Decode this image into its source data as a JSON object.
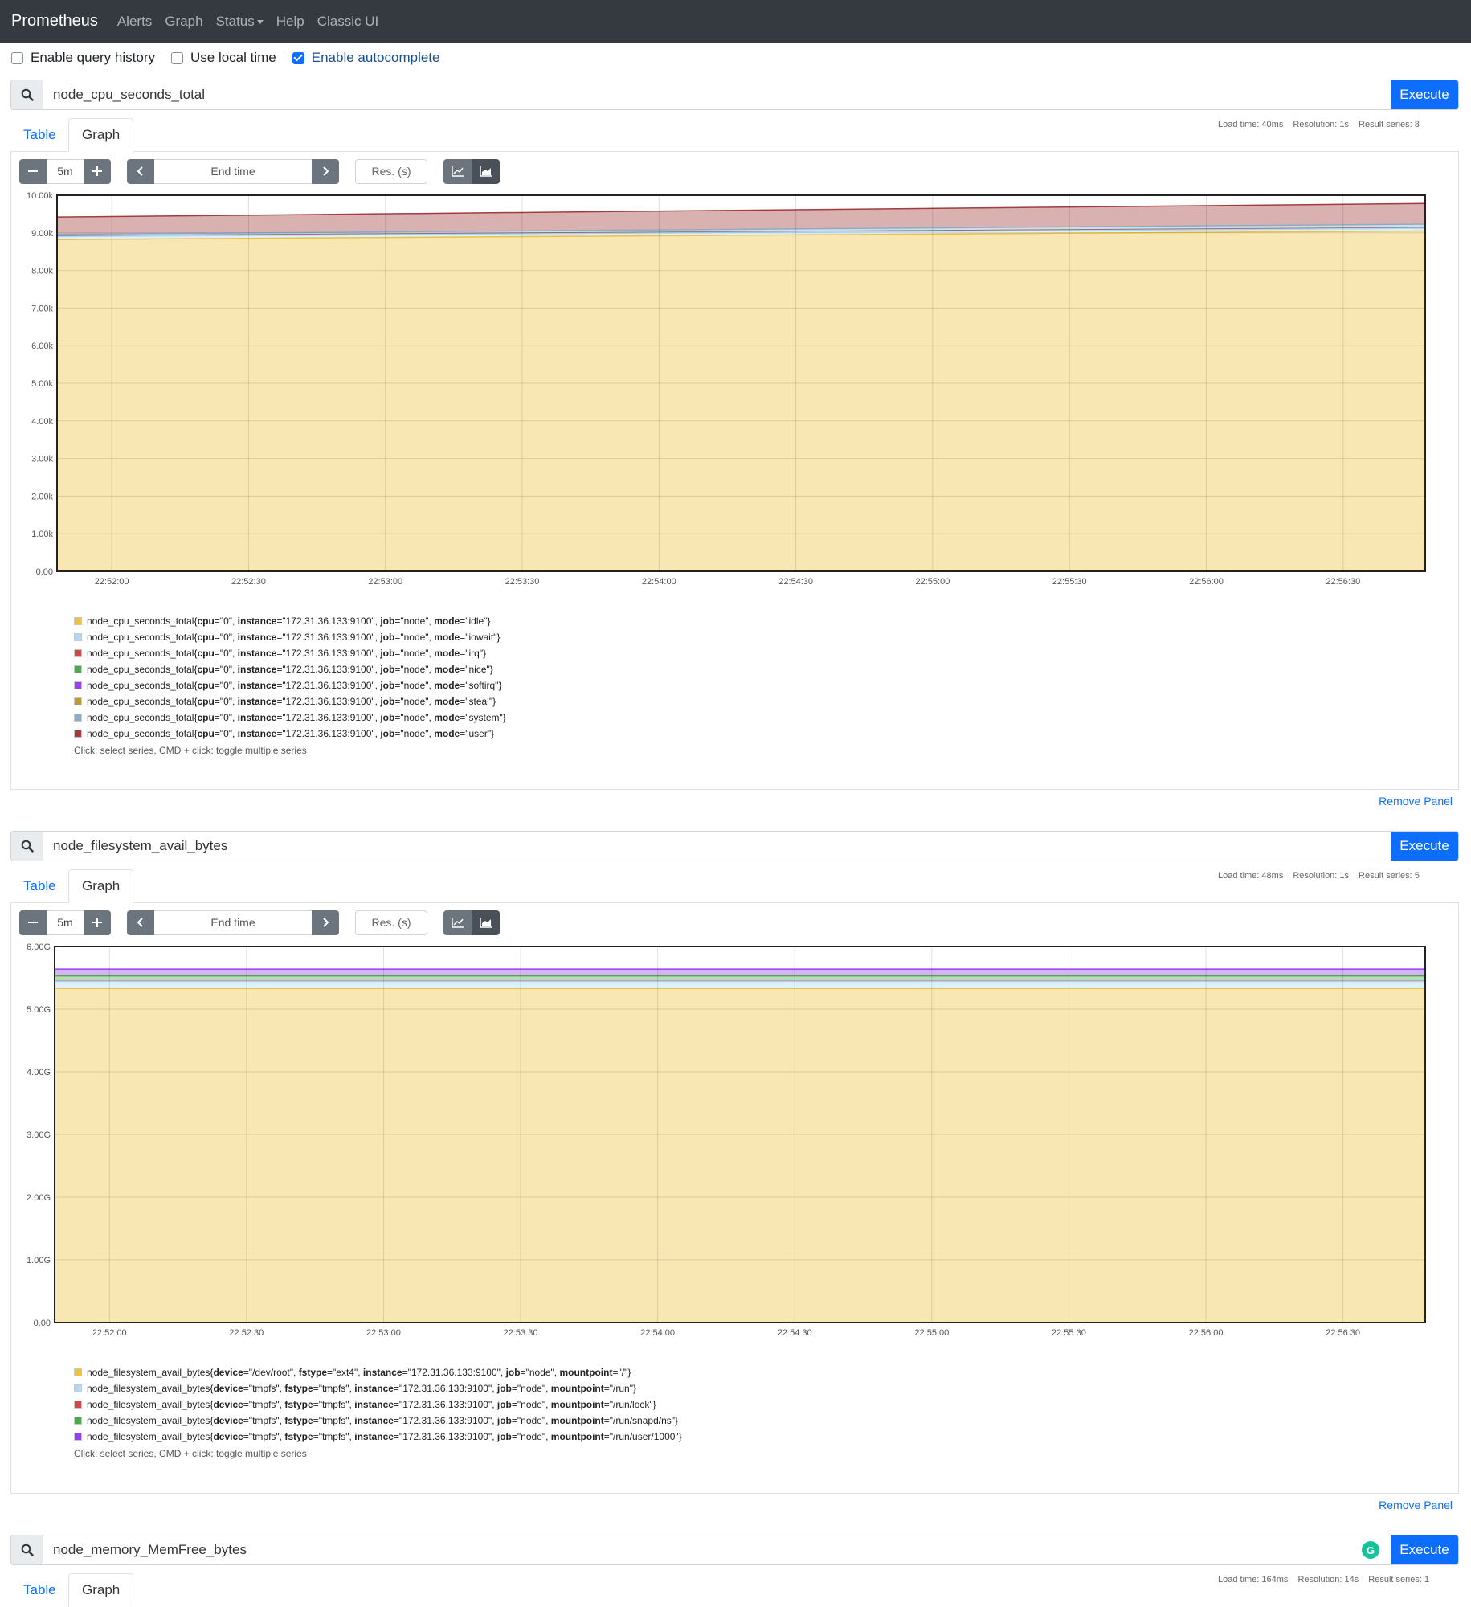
{
  "navbar": {
    "brand": "Prometheus",
    "links": [
      "Alerts",
      "Graph",
      "Status",
      "Help",
      "Classic UI"
    ]
  },
  "options": [
    {
      "label": "Enable query history",
      "checked": false
    },
    {
      "label": "Use local time",
      "checked": false
    },
    {
      "label": "Enable autocomplete",
      "checked": true
    }
  ],
  "common": {
    "execute": "Execute",
    "tab_table": "Table",
    "tab_graph": "Graph",
    "range": "5m",
    "end_time": "End time",
    "res_placeholder": "Res. (s)",
    "remove_panel": "Remove Panel",
    "legend_hint": "Click: select series, CMD + click: toggle multiple series"
  },
  "panels": [
    {
      "query": "node_cpu_seconds_total",
      "stats": {
        "load": "Load time: 40ms",
        "resolution": "Resolution: 1s",
        "series": "Result series: 8"
      },
      "legend": [
        {
          "name": "node_cpu_seconds_total",
          "color": "#edc240",
          "labels": [
            [
              "cpu",
              "\"0\""
            ],
            [
              "instance",
              "\"172.31.36.133:9100\""
            ],
            [
              "job",
              "\"node\""
            ],
            [
              "mode",
              "\"idle\""
            ]
          ]
        },
        {
          "name": "node_cpu_seconds_total",
          "color": "#afd8f8",
          "labels": [
            [
              "cpu",
              "\"0\""
            ],
            [
              "instance",
              "\"172.31.36.133:9100\""
            ],
            [
              "job",
              "\"node\""
            ],
            [
              "mode",
              "\"iowait\""
            ]
          ]
        },
        {
          "name": "node_cpu_seconds_total",
          "color": "#cb4b4b",
          "labels": [
            [
              "cpu",
              "\"0\""
            ],
            [
              "instance",
              "\"172.31.36.133:9100\""
            ],
            [
              "job",
              "\"node\""
            ],
            [
              "mode",
              "\"irq\""
            ]
          ]
        },
        {
          "name": "node_cpu_seconds_total",
          "color": "#4da74d",
          "labels": [
            [
              "cpu",
              "\"0\""
            ],
            [
              "instance",
              "\"172.31.36.133:9100\""
            ],
            [
              "job",
              "\"node\""
            ],
            [
              "mode",
              "\"nice\""
            ]
          ]
        },
        {
          "name": "node_cpu_seconds_total",
          "color": "#9440ed",
          "labels": [
            [
              "cpu",
              "\"0\""
            ],
            [
              "instance",
              "\"172.31.36.133:9100\""
            ],
            [
              "job",
              "\"node\""
            ],
            [
              "mode",
              "\"softirq\""
            ]
          ]
        },
        {
          "name": "node_cpu_seconds_total",
          "color": "#bd9b33",
          "labels": [
            [
              "cpu",
              "\"0\""
            ],
            [
              "instance",
              "\"172.31.36.133:9100\""
            ],
            [
              "job",
              "\"node\""
            ],
            [
              "mode",
              "\"steal\""
            ]
          ]
        },
        {
          "name": "node_cpu_seconds_total",
          "color": "#8cacc6",
          "labels": [
            [
              "cpu",
              "\"0\""
            ],
            [
              "instance",
              "\"172.31.36.133:9100\""
            ],
            [
              "job",
              "\"node\""
            ],
            [
              "mode",
              "\"system\""
            ]
          ]
        },
        {
          "name": "node_cpu_seconds_total",
          "color": "#a23c3c",
          "labels": [
            [
              "cpu",
              "\"0\""
            ],
            [
              "instance",
              "\"172.31.36.133:9100\""
            ],
            [
              "job",
              "\"node\""
            ],
            [
              "mode",
              "\"user\""
            ]
          ]
        }
      ],
      "chart_data": {
        "type": "area",
        "stacked": true,
        "x_ticks": [
          "22:52:00",
          "22:52:30",
          "22:53:00",
          "22:53:30",
          "22:54:00",
          "22:54:30",
          "22:55:00",
          "22:55:30",
          "22:56:00",
          "22:56:30"
        ],
        "y_ticks": [
          "0.00",
          "1.00k",
          "2.00k",
          "3.00k",
          "4.00k",
          "5.00k",
          "6.00k",
          "7.00k",
          "8.00k",
          "9.00k",
          "10.00k"
        ],
        "ylim": [
          0,
          10000
        ],
        "xlim": [
          "22:51:48",
          "22:56:48"
        ],
        "grid": true,
        "series": [
          {
            "color": "#edc240",
            "start": 8820,
            "end": 9050
          },
          {
            "color": "#afd8f8",
            "start": 8900,
            "end": 9120
          },
          {
            "color": "#cb4b4b",
            "start": 8905,
            "end": 9125
          },
          {
            "color": "#4da74d",
            "start": 8910,
            "end": 9130
          },
          {
            "color": "#9440ed",
            "start": 8915,
            "end": 9135
          },
          {
            "color": "#bd9b33",
            "start": 8920,
            "end": 9140
          },
          {
            "color": "#8cacc6",
            "start": 8960,
            "end": 9230
          },
          {
            "color": "#a23c3c",
            "start": 9420,
            "end": 9780
          }
        ]
      }
    },
    {
      "query": "node_filesystem_avail_bytes",
      "stats": {
        "load": "Load time: 48ms",
        "resolution": "Resolution: 1s",
        "series": "Result series: 5"
      },
      "legend": [
        {
          "name": "node_filesystem_avail_bytes",
          "color": "#edc240",
          "labels": [
            [
              "device",
              "\"/dev/root\""
            ],
            [
              "fstype",
              "\"ext4\""
            ],
            [
              "instance",
              "\"172.31.36.133:9100\""
            ],
            [
              "job",
              "\"node\""
            ],
            [
              "mountpoint",
              "\"/\""
            ]
          ]
        },
        {
          "name": "node_filesystem_avail_bytes",
          "color": "#afd8f8",
          "labels": [
            [
              "device",
              "\"tmpfs\""
            ],
            [
              "fstype",
              "\"tmpfs\""
            ],
            [
              "instance",
              "\"172.31.36.133:9100\""
            ],
            [
              "job",
              "\"node\""
            ],
            [
              "mountpoint",
              "\"/run\""
            ]
          ]
        },
        {
          "name": "node_filesystem_avail_bytes",
          "color": "#cb4b4b",
          "labels": [
            [
              "device",
              "\"tmpfs\""
            ],
            [
              "fstype",
              "\"tmpfs\""
            ],
            [
              "instance",
              "\"172.31.36.133:9100\""
            ],
            [
              "job",
              "\"node\""
            ],
            [
              "mountpoint",
              "\"/run/lock\""
            ]
          ]
        },
        {
          "name": "node_filesystem_avail_bytes",
          "color": "#4da74d",
          "labels": [
            [
              "device",
              "\"tmpfs\""
            ],
            [
              "fstype",
              "\"tmpfs\""
            ],
            [
              "instance",
              "\"172.31.36.133:9100\""
            ],
            [
              "job",
              "\"node\""
            ],
            [
              "mountpoint",
              "\"/run/snapd/ns\""
            ]
          ]
        },
        {
          "name": "node_filesystem_avail_bytes",
          "color": "#9440ed",
          "labels": [
            [
              "device",
              "\"tmpfs\""
            ],
            [
              "fstype",
              "\"tmpfs\""
            ],
            [
              "instance",
              "\"172.31.36.133:9100\""
            ],
            [
              "job",
              "\"node\""
            ],
            [
              "mountpoint",
              "\"/run/user/1000\""
            ]
          ]
        }
      ],
      "chart_data": {
        "type": "area",
        "stacked": true,
        "x_ticks": [
          "22:52:00",
          "22:52:30",
          "22:53:00",
          "22:53:30",
          "22:54:00",
          "22:54:30",
          "22:55:00",
          "22:55:30",
          "22:56:00",
          "22:56:30"
        ],
        "y_ticks": [
          "0.00",
          "1.00G",
          "2.00G",
          "3.00G",
          "4.00G",
          "5.00G",
          "6.00G"
        ],
        "ylim": [
          0,
          6000000000
        ],
        "xlim": [
          "22:51:48",
          "22:56:48"
        ],
        "grid": true,
        "series": [
          {
            "color": "#edc240",
            "start": 5330000000,
            "end": 5330000000
          },
          {
            "color": "#afd8f8",
            "start": 5440000000,
            "end": 5440000000
          },
          {
            "color": "#cb4b4b",
            "start": 5445000000,
            "end": 5445000000
          },
          {
            "color": "#4da74d",
            "start": 5530000000,
            "end": 5530000000
          },
          {
            "color": "#9440ed",
            "start": 5640000000,
            "end": 5640000000
          }
        ]
      }
    },
    {
      "query": "node_memory_MemFree_bytes",
      "stats": {
        "load": "Load time: 164ms",
        "resolution": "Resolution: 14s",
        "series": "Result series: 1"
      }
    }
  ]
}
